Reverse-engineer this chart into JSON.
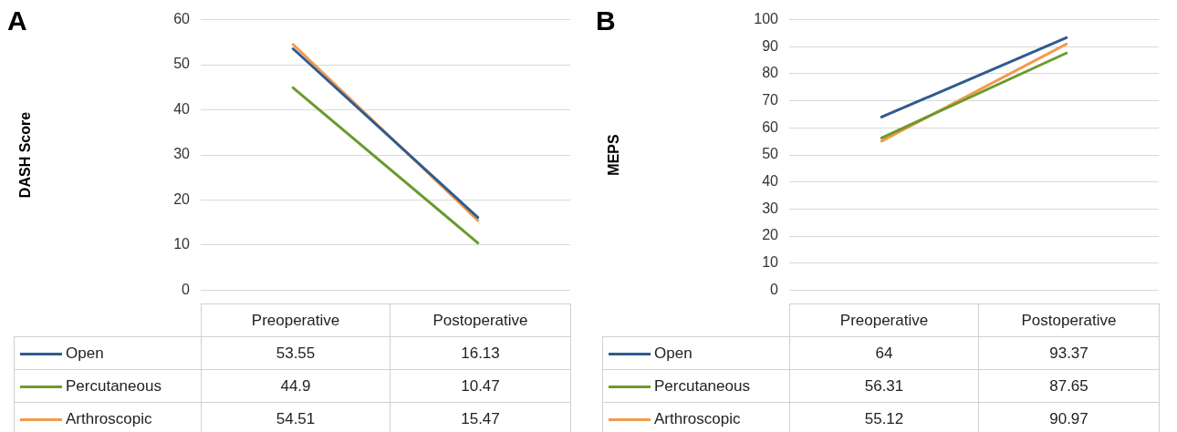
{
  "chart_data": [
    {
      "type": "line",
      "title": "A",
      "ylabel": "DASH Score",
      "categories": [
        "Preoperative",
        "Postoperative"
      ],
      "ylim": [
        0,
        60
      ],
      "yticks": [
        0,
        10,
        20,
        30,
        40,
        50,
        60
      ],
      "grid": "y",
      "legend": "bottom",
      "data_labels": true,
      "tick_labels": "y",
      "marker": "none",
      "line_style": "solid",
      "series": [
        {
          "name": "Open",
          "color": "#2f5b8f",
          "values": [
            53.55,
            16.13
          ]
        },
        {
          "name": "Percutaneous",
          "color": "#6a9a2f",
          "values": [
            44.9,
            10.47
          ]
        },
        {
          "name": "Arthroscopic",
          "color": "#f39a4c",
          "values": [
            54.51,
            15.47
          ]
        }
      ]
    },
    {
      "type": "line",
      "title": "B",
      "ylabel": "MEPS",
      "categories": [
        "Preoperative",
        "Postoperative"
      ],
      "ylim": [
        0,
        100
      ],
      "yticks": [
        0,
        10,
        20,
        30,
        40,
        50,
        60,
        70,
        80,
        90,
        100
      ],
      "grid": "y",
      "legend": "bottom",
      "data_labels": true,
      "tick_labels": "y",
      "marker": "none",
      "line_style": "solid",
      "series": [
        {
          "name": "Open",
          "color": "#2f5b8f",
          "values": [
            64,
            93.37
          ]
        },
        {
          "name": "Percutaneous",
          "color": "#6a9a2f",
          "values": [
            56.31,
            87.65
          ]
        },
        {
          "name": "Arthroscopic",
          "color": "#f39a4c",
          "values": [
            55.12,
            90.97
          ]
        }
      ]
    }
  ]
}
